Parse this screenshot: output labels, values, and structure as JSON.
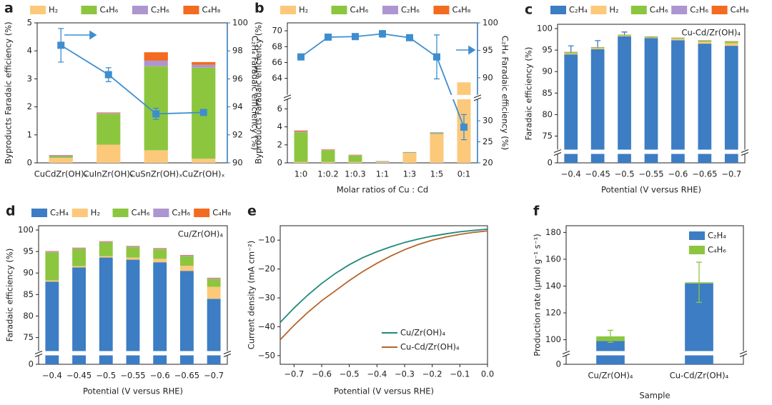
{
  "chart_data": [
    {
      "label": "a",
      "type": "bar",
      "legend": "top",
      "categories": [
        "CuCdZr(OH)ₓ",
        "CuInZr(OH)ₓ",
        "CuSnZr(OH)ₓ",
        "CuZr(OH)ₓ"
      ],
      "series": [
        {
          "name": "H₂",
          "color": "#fcc97a",
          "values": [
            0.18,
            0.65,
            0.45,
            0.15
          ]
        },
        {
          "name": "C₄H₆",
          "color": "#8cc63f",
          "values": [
            0.05,
            1.1,
            3.0,
            3.25
          ]
        },
        {
          "name": "C₂H₆",
          "color": "#ad96cf",
          "values": [
            0.04,
            0.03,
            0.2,
            0.1
          ]
        },
        {
          "name": "C₄H₈",
          "color": "#f36b21",
          "values": [
            0.01,
            0.02,
            0.3,
            0.1
          ]
        },
        {
          "type": "line",
          "axis": "y2",
          "color": "#3e8ecf",
          "values": [
            98.4,
            96.3,
            93.5,
            93.6
          ],
          "errors": [
            1.2,
            0.5,
            0.4,
            0.1
          ]
        }
      ],
      "ylim": [
        0,
        5
      ],
      "yticks": [
        0,
        1,
        2,
        3,
        4,
        5
      ],
      "y2lim": [
        90,
        100
      ],
      "y2ticks": [
        90,
        92,
        94,
        96,
        98,
        100
      ],
      "ylabel": "Byproducts Faradaic efficiency (%)",
      "y2label": "C₂H₄ Faradaic efficiency (%)"
    },
    {
      "label": "b",
      "type": "bar",
      "legend": "top",
      "categories": [
        "1:0",
        "1:0.2",
        "1:0.3",
        "1:1",
        "1:3",
        "1:5",
        "0:1"
      ],
      "series": [
        {
          "name": "H₂",
          "color": "#fcc97a",
          "values": [
            0.1,
            0.1,
            0.1,
            0.1,
            1.1,
            3.2,
            63.5
          ]
        },
        {
          "name": "C₄H₆",
          "color": "#8cc63f",
          "values": [
            3.3,
            1.3,
            0.7,
            0.05,
            0.05,
            0.1,
            0
          ]
        },
        {
          "name": "C₂H₆",
          "color": "#ad96cf",
          "values": [
            0.1,
            0.05,
            0.05,
            0.05,
            0.05,
            0.1,
            0
          ]
        },
        {
          "name": "C₄H₈",
          "color": "#f36b21",
          "values": [
            0.1,
            0.05,
            0.05,
            0,
            0,
            0,
            0
          ]
        },
        {
          "type": "line",
          "axis": "y2",
          "color": "#3e8ecf",
          "values": [
            93.8,
            97.4,
            97.5,
            98.0,
            97.3,
            93.8,
            28.5
          ],
          "errors": [
            0.3,
            0.3,
            0.3,
            0.6,
            0.3,
            4,
            3
          ]
        }
      ],
      "ylim": [
        0,
        71
      ],
      "ybreak": [
        7,
        62
      ],
      "yticks": [
        0,
        2,
        4,
        6,
        64,
        66,
        68,
        70
      ],
      "y2lim": [
        20,
        100
      ],
      "y2break": [
        35,
        87
      ],
      "y2ticks": [
        20,
        25,
        30,
        90,
        95,
        100
      ],
      "xlabel": "Molar ratios of Cu : Cd",
      "ylabel": "Byproducts Faradaic efficiency (%)",
      "y2label": "C₂H₄ Faradaic efficiency (%)"
    },
    {
      "label": "c",
      "type": "bar",
      "legend": "top",
      "annotation": "Cu-Cd/Zr(OH)₄",
      "categories": [
        "−0.4",
        "−0.45",
        "−0.5",
        "−0.55",
        "−0.6",
        "−0.65",
        "−0.7"
      ],
      "series": [
        {
          "name": "C₂H₄",
          "color": "#3c7dc4",
          "values": [
            94.0,
            95.2,
            98.2,
            97.8,
            97.3,
            96.5,
            96.0
          ],
          "errors": [
            2.0,
            2.0,
            1.0,
            0.2,
            0.2,
            0.2,
            0.2
          ]
        },
        {
          "name": "H₂",
          "color": "#fcc97a",
          "values": [
            0.2,
            0.2,
            0.1,
            0.1,
            0.3,
            0.4,
            0.6
          ]
        },
        {
          "name": "C₄H₆",
          "color": "#8cc63f",
          "values": [
            0.3,
            0.2,
            0.2,
            0.2,
            0.2,
            0.3,
            0.4
          ]
        },
        {
          "name": "C₂H₆",
          "color": "#ad96cf",
          "values": [
            0.05,
            0.05,
            0.05,
            0.05,
            0.05,
            0.05,
            0.05
          ]
        },
        {
          "name": "C₄H₈",
          "color": "#f36b21",
          "values": [
            0.05,
            0.05,
            0.05,
            0.05,
            0.05,
            0.05,
            0.05
          ]
        }
      ],
      "ylim": [
        0,
        101
      ],
      "ybreak": [
        1,
        72
      ],
      "yticks": [
        0,
        75,
        80,
        85,
        90,
        95,
        100
      ],
      "xlabel": "Potential (V versus RHE)",
      "ylabel": "Faradaic efficiency (%)"
    },
    {
      "label": "d",
      "type": "bar",
      "legend": "top",
      "annotation": "Cu/Zr(OH)₄",
      "categories": [
        "−0.4",
        "−0.45",
        "−0.5",
        "−0.55",
        "−0.6",
        "−0.65",
        "−0.7"
      ],
      "series": [
        {
          "name": "C₂H₄",
          "color": "#3c7dc4",
          "values": [
            88.0,
            91.3,
            93.6,
            93.1,
            92.5,
            90.5,
            84.0
          ]
        },
        {
          "name": "H₂",
          "color": "#fcc97a",
          "values": [
            0.3,
            0.3,
            0.3,
            0.5,
            0.8,
            1.2,
            2.8
          ]
        },
        {
          "name": "C₄H₆",
          "color": "#8cc63f",
          "values": [
            6.5,
            4.0,
            3.2,
            2.4,
            2.2,
            2.2,
            1.8
          ]
        },
        {
          "name": "C₂H₆",
          "color": "#ad96cf",
          "values": [
            0.2,
            0.2,
            0.2,
            0.2,
            0.2,
            0.2,
            0.2
          ]
        },
        {
          "name": "C₄H₈",
          "color": "#f36b21",
          "values": [
            0.1,
            0.1,
            0.1,
            0.1,
            0.1,
            0.1,
            0.1
          ]
        }
      ],
      "ylim": [
        0,
        101
      ],
      "ybreak": [
        1,
        72
      ],
      "yticks": [
        0,
        75,
        80,
        85,
        90,
        95,
        100
      ],
      "xlabel": "Potential (V versus RHE)",
      "ylabel": "Faradaic efficiency (%)"
    },
    {
      "label": "e",
      "type": "line",
      "legend": "lower right",
      "x": [
        -0.75,
        -0.7,
        -0.65,
        -0.6,
        -0.55,
        -0.5,
        -0.45,
        -0.4,
        -0.35,
        -0.3,
        -0.25,
        -0.2,
        -0.15,
        -0.1,
        -0.05,
        0
      ],
      "series": [
        {
          "name": "Cu/Zr(OH)₄",
          "color": "#1f8a7a",
          "values": [
            -38.5,
            -33.5,
            -29,
            -25,
            -21.5,
            -18.5,
            -16,
            -14,
            -12.3,
            -10.8,
            -9.6,
            -8.6,
            -7.8,
            -7.1,
            -6.6,
            -6.2
          ]
        },
        {
          "name": "Cu-Cd/Zr(OH)₄",
          "color": "#b5652a",
          "values": [
            -44.5,
            -39.5,
            -35,
            -31,
            -27.5,
            -24,
            -20.8,
            -18,
            -15.5,
            -13.3,
            -11.5,
            -10,
            -8.9,
            -8,
            -7.3,
            -6.8
          ]
        }
      ],
      "xlim": [
        -0.75,
        0
      ],
      "xticks": [
        {
          "value": -0.7,
          "label": "−0.7"
        },
        {
          "value": -0.6,
          "label": "−0.6"
        },
        {
          "value": -0.5,
          "label": "−0.5"
        },
        {
          "value": -0.4,
          "label": "−0.4"
        },
        {
          "value": -0.3,
          "label": "−0.3"
        },
        {
          "value": -0.2,
          "label": "−0.2"
        },
        {
          "value": -0.1,
          "label": "−0.1"
        },
        {
          "value": 0,
          "label": "0.0"
        }
      ],
      "ylim": [
        -53,
        -5
      ],
      "yticks": [
        {
          "value": -50,
          "label": "−50"
        },
        {
          "value": -40,
          "label": "−40"
        },
        {
          "value": -30,
          "label": "−30"
        },
        {
          "value": -20,
          "label": "−20"
        },
        {
          "value": -10,
          "label": "−10"
        }
      ],
      "xlabel": "Potential (V versus RHE)",
      "ylabel": "Current density (mA cm⁻²)"
    },
    {
      "label": "f",
      "type": "bar",
      "legend": "upper right",
      "categories": [
        "Cu/Zr(OH)₄",
        "Cu-Cd/Zr(OH)₄"
      ],
      "series": [
        {
          "name": "C₂H₄",
          "color": "#3c7dc4",
          "values": [
            99,
            142
          ]
        },
        {
          "name": "C₄H₆",
          "color": "#8cc63f",
          "values": [
            3.5,
            0.8
          ],
          "errors": [
            4.5,
            15
          ]
        }
      ],
      "ylim": [
        0,
        185
      ],
      "ybreak": [
        1,
        92
      ],
      "yticks": [
        0,
        100,
        120,
        140,
        160,
        180
      ],
      "xlabel": "Sample",
      "ylabel": "Production rate (μmol g⁻¹ s⁻¹)"
    }
  ]
}
